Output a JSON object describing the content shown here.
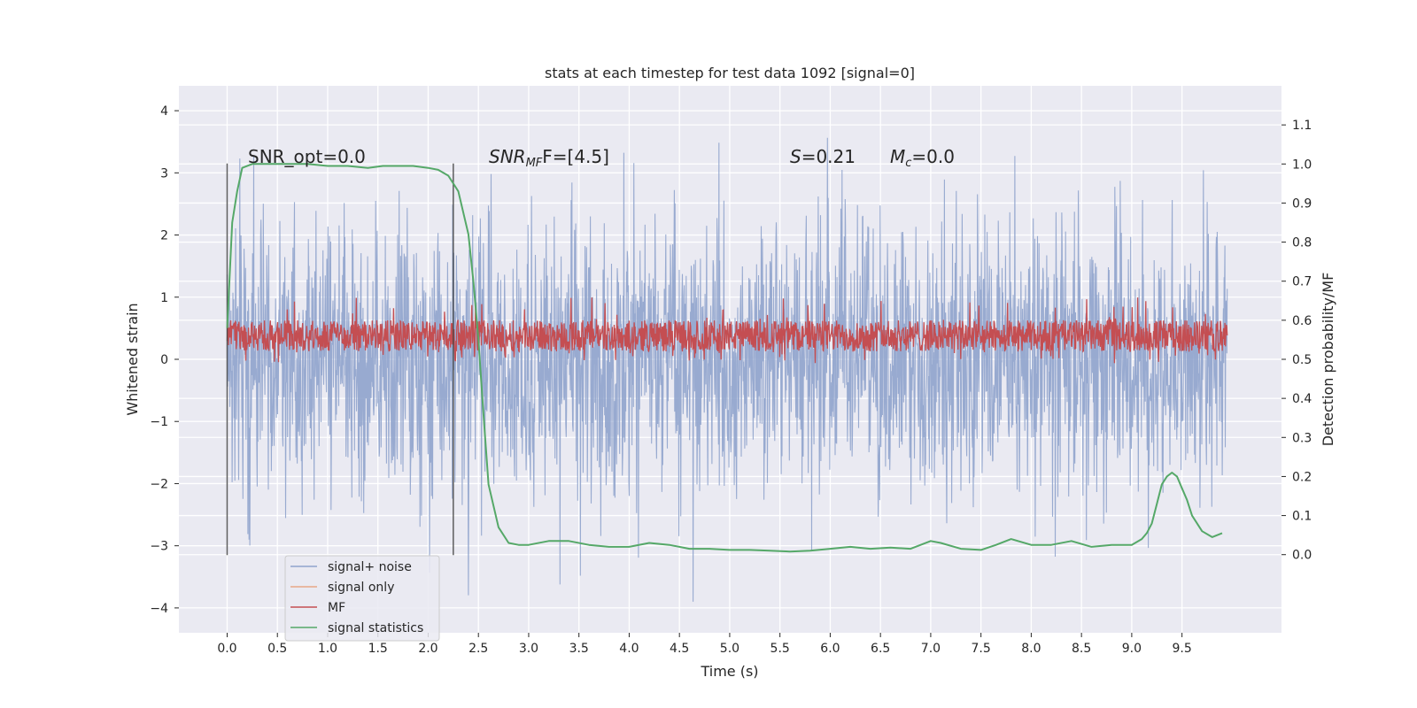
{
  "chart_data": {
    "type": "line",
    "title": "stats at each timestep for test data 1092 [signal=0]",
    "xlabel": "Time (s)",
    "ylabel": "Whitened strain",
    "y2label": "Detection probability/MF",
    "xlim": [
      -0.48,
      10.49
    ],
    "ylim": [
      -4.4,
      4.4
    ],
    "y2lim": [
      -0.2,
      1.2
    ],
    "x_ticks": [
      "0.0",
      "0.5",
      "1.0",
      "1.5",
      "2.0",
      "2.5",
      "3.0",
      "3.5",
      "4.0",
      "4.5",
      "5.0",
      "5.5",
      "6.0",
      "6.5",
      "7.0",
      "7.5",
      "8.0",
      "8.5",
      "9.0",
      "9.5"
    ],
    "y_ticks": [
      "4",
      "3",
      "2",
      "1",
      "0",
      "−1",
      "−2",
      "−3",
      "−4"
    ],
    "y2_ticks": [
      "1.1",
      "1.0",
      "0.9",
      "0.8",
      "0.7",
      "0.6",
      "0.5",
      "0.4",
      "0.3",
      "0.2",
      "0.1",
      "0.0"
    ],
    "grid": true,
    "legend_position": "lower-left",
    "annotations": {
      "snr_opt": "SNR_opt=0.0",
      "snr_mf_main": "SNR",
      "snr_mf_sub": "MF",
      "snr_mf_value": "F=[4.5]",
      "s_symbol": "S",
      "s_value": "=0.21",
      "mc_symbol": "M",
      "mc_sub": "c",
      "mc_value": "=0.0"
    },
    "vertical_lines": [
      0.0,
      2.25
    ],
    "series": [
      {
        "name": "signal+ noise",
        "color": "#8fa3cc",
        "axis": "left",
        "x_range": [
          0.0,
          9.95
        ],
        "envelope_typical": [
          -1.3,
          1.3
        ],
        "extremes": [
          -3.9,
          3.9
        ]
      },
      {
        "name": "signal only",
        "color": "#e8a887",
        "axis": "left",
        "values": []
      },
      {
        "name": "MF",
        "color": "#c44e52",
        "axis": "right",
        "x_range": [
          0.0,
          9.95
        ],
        "band": [
          0.52,
          0.6
        ],
        "extremes": [
          0.49,
          0.66
        ]
      },
      {
        "name": "signal statistics",
        "color": "#55a868",
        "axis": "right",
        "x": [
          0.0,
          0.05,
          0.1,
          0.15,
          0.25,
          0.4,
          0.6,
          0.8,
          1.0,
          1.2,
          1.4,
          1.55,
          1.7,
          1.85,
          2.0,
          2.1,
          2.2,
          2.3,
          2.4,
          2.45,
          2.5,
          2.55,
          2.6,
          2.7,
          2.8,
          2.9,
          3.0,
          3.2,
          3.4,
          3.6,
          3.8,
          4.0,
          4.2,
          4.4,
          4.6,
          4.8,
          5.0,
          5.2,
          5.4,
          5.6,
          5.8,
          6.0,
          6.2,
          6.4,
          6.6,
          6.8,
          7.0,
          7.1,
          7.3,
          7.5,
          7.65,
          7.8,
          8.0,
          8.2,
          8.4,
          8.6,
          8.8,
          9.0,
          9.1,
          9.15,
          9.2,
          9.25,
          9.3,
          9.35,
          9.4,
          9.45,
          9.5,
          9.55,
          9.6,
          9.7,
          9.8,
          9.9
        ],
        "values": [
          0.58,
          0.85,
          0.93,
          0.99,
          1.0,
          1.0,
          1.0,
          1.0,
          0.995,
          0.995,
          0.99,
          0.995,
          0.995,
          0.995,
          0.99,
          0.985,
          0.97,
          0.93,
          0.82,
          0.7,
          0.55,
          0.36,
          0.18,
          0.07,
          0.03,
          0.025,
          0.025,
          0.035,
          0.035,
          0.025,
          0.02,
          0.02,
          0.03,
          0.025,
          0.015,
          0.015,
          0.012,
          0.012,
          0.01,
          0.008,
          0.01,
          0.015,
          0.02,
          0.015,
          0.018,
          0.015,
          0.035,
          0.03,
          0.015,
          0.012,
          0.025,
          0.04,
          0.025,
          0.025,
          0.035,
          0.02,
          0.025,
          0.025,
          0.04,
          0.055,
          0.08,
          0.13,
          0.18,
          0.2,
          0.21,
          0.2,
          0.17,
          0.14,
          0.1,
          0.06,
          0.045,
          0.055
        ]
      }
    ]
  }
}
